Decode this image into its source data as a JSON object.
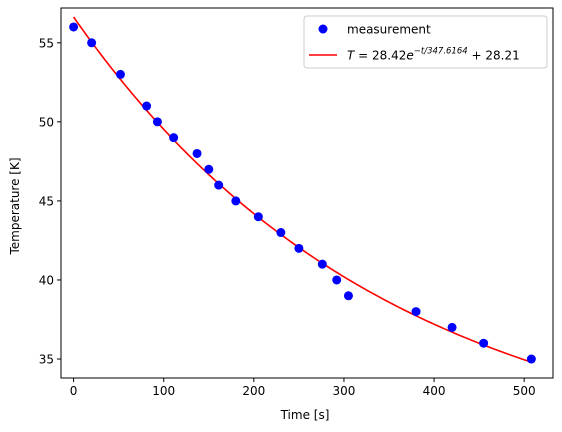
{
  "chart_data": {
    "type": "scatter",
    "xlabel": "Time [s]",
    "ylabel": "Temperature [K]",
    "xlim": [
      -14,
      532
    ],
    "ylim": [
      33.8,
      57.2
    ],
    "xticks": [
      0,
      100,
      200,
      300,
      400,
      500
    ],
    "yticks": [
      35,
      40,
      45,
      50,
      55
    ],
    "grid": false,
    "legend_position": "top-right",
    "series": [
      {
        "name": "measurement",
        "kind": "scatter",
        "color": "#0000ff",
        "points": [
          [
            0,
            56
          ],
          [
            20,
            55
          ],
          [
            52,
            53
          ],
          [
            81,
            51
          ],
          [
            93,
            50
          ],
          [
            111,
            49
          ],
          [
            137,
            48
          ],
          [
            150,
            47
          ],
          [
            161,
            46
          ],
          [
            180,
            45
          ],
          [
            205,
            44
          ],
          [
            230,
            43
          ],
          [
            250,
            42
          ],
          [
            276,
            41
          ],
          [
            292,
            40
          ],
          [
            305,
            39
          ],
          [
            380,
            38
          ],
          [
            420,
            37
          ],
          [
            455,
            36
          ],
          [
            508,
            35
          ]
        ]
      },
      {
        "name": "T = 28.42e^{-t/347.6164} + 28.21",
        "kind": "line",
        "color": "#ff0000",
        "model": {
          "a": 28.42,
          "tau": 347.6164,
          "c": 28.21,
          "t_start": 0,
          "t_end": 508
        }
      }
    ],
    "legend": {
      "measurement": "measurement",
      "fit_T": "T",
      "fit_eq": " = 28.42",
      "fit_e": "e",
      "fit_exp": "−t/347.6164",
      "fit_tail": " + 28.21"
    }
  }
}
